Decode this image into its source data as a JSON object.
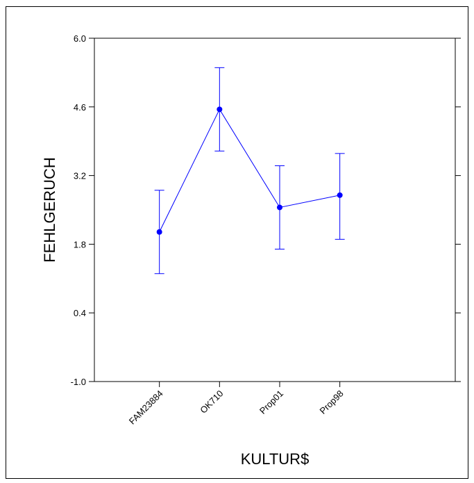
{
  "chart_data": {
    "type": "line",
    "title": "",
    "xlabel": "KULTUR$",
    "ylabel": "FEHLGERUCH",
    "ylim": [
      -1.0,
      6.0
    ],
    "yticks": [
      "-1.0",
      "0.4",
      "1.8",
      "3.2",
      "4.6",
      "6.0"
    ],
    "ytick_values": [
      -1.0,
      0.4,
      1.8,
      3.2,
      4.6,
      6.0
    ],
    "categories": [
      "FAM23884",
      "OK710",
      "Prop01",
      "Prop98"
    ],
    "series": [
      {
        "values": [
          2.05,
          4.55,
          2.55,
          2.8
        ],
        "error_low": [
          1.2,
          3.7,
          1.7,
          1.9
        ],
        "error_high": [
          2.9,
          5.4,
          3.4,
          3.65
        ]
      }
    ],
    "grid": false,
    "series_color": "#0000ff"
  }
}
